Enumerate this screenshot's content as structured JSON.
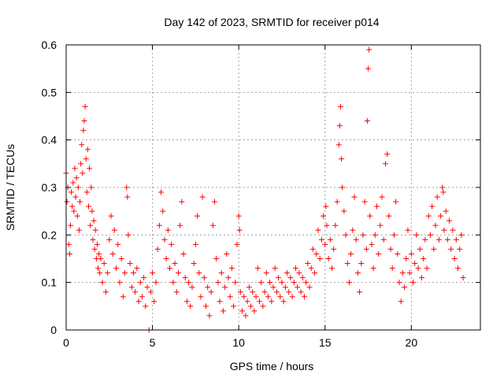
{
  "chart_data": {
    "type": "scatter",
    "title": "Day 142 of 2023, SRMTID for receiver p014",
    "xlabel": "GPS time / hours",
    "ylabel": "SRMTID / TECUs",
    "xlim": [
      0,
      24
    ],
    "ylim": [
      0,
      0.6
    ],
    "xticks": [
      0,
      5,
      10,
      15,
      20
    ],
    "yticks": [
      0,
      0.1,
      0.2,
      0.3,
      0.4,
      0.5,
      0.6
    ],
    "xtick_labels": [
      "0",
      "5",
      "10",
      "15",
      "20"
    ],
    "ytick_labels": [
      "0",
      "0.1",
      "0.2",
      "0.3",
      "0.4",
      "0.5",
      "0.6"
    ],
    "grid": true,
    "marker": "+",
    "color": "#ff0000",
    "series": [
      {
        "name": "SRMTID",
        "points": [
          [
            0.0,
            0.33
          ],
          [
            0.05,
            0.27
          ],
          [
            0.1,
            0.3
          ],
          [
            0.15,
            0.18
          ],
          [
            0.2,
            0.16
          ],
          [
            0.25,
            0.22
          ],
          [
            0.3,
            0.29
          ],
          [
            0.35,
            0.26
          ],
          [
            0.4,
            0.31
          ],
          [
            0.45,
            0.25
          ],
          [
            0.5,
            0.34
          ],
          [
            0.55,
            0.28
          ],
          [
            0.6,
            0.32
          ],
          [
            0.65,
            0.24
          ],
          [
            0.7,
            0.3
          ],
          [
            0.75,
            0.21
          ],
          [
            0.8,
            0.27
          ],
          [
            0.85,
            0.35
          ],
          [
            0.9,
            0.39
          ],
          [
            0.95,
            0.33
          ],
          [
            1.0,
            0.42
          ],
          [
            1.05,
            0.44
          ],
          [
            1.1,
            0.47
          ],
          [
            1.15,
            0.36
          ],
          [
            1.2,
            0.29
          ],
          [
            1.25,
            0.38
          ],
          [
            1.3,
            0.26
          ],
          [
            1.35,
            0.34
          ],
          [
            1.4,
            0.22
          ],
          [
            1.45,
            0.3
          ],
          [
            1.5,
            0.25
          ],
          [
            1.55,
            0.19
          ],
          [
            1.6,
            0.23
          ],
          [
            1.65,
            0.17
          ],
          [
            1.7,
            0.21
          ],
          [
            1.75,
            0.15
          ],
          [
            1.8,
            0.18
          ],
          [
            1.85,
            0.13
          ],
          [
            1.9,
            0.16
          ],
          [
            1.95,
            0.12
          ],
          [
            2.0,
            0.15
          ],
          [
            2.1,
            0.1
          ],
          [
            2.2,
            0.14
          ],
          [
            2.3,
            0.08
          ],
          [
            2.4,
            0.12
          ],
          [
            2.5,
            0.19
          ],
          [
            2.6,
            0.24
          ],
          [
            2.7,
            0.16
          ],
          [
            2.8,
            0.21
          ],
          [
            2.9,
            0.13
          ],
          [
            3.0,
            0.18
          ],
          [
            3.1,
            0.1
          ],
          [
            3.2,
            0.15
          ],
          [
            3.3,
            0.07
          ],
          [
            3.4,
            0.12
          ],
          [
            3.5,
            0.3
          ],
          [
            3.55,
            0.28
          ],
          [
            3.6,
            0.2
          ],
          [
            3.7,
            0.14
          ],
          [
            3.8,
            0.09
          ],
          [
            3.9,
            0.12
          ],
          [
            4.0,
            0.08
          ],
          [
            4.1,
            0.13
          ],
          [
            4.2,
            0.06
          ],
          [
            4.3,
            0.1
          ],
          [
            4.4,
            0.07
          ],
          [
            4.5,
            0.11
          ],
          [
            4.6,
            0.05
          ],
          [
            4.7,
            0.09
          ],
          [
            4.8,
            0.0
          ],
          [
            4.9,
            0.08
          ],
          [
            5.0,
            0.12
          ],
          [
            5.1,
            0.06
          ],
          [
            5.2,
            0.1
          ],
          [
            5.3,
            0.17
          ],
          [
            5.4,
            0.22
          ],
          [
            5.5,
            0.29
          ],
          [
            5.6,
            0.25
          ],
          [
            5.7,
            0.19
          ],
          [
            5.8,
            0.15
          ],
          [
            5.9,
            0.21
          ],
          [
            6.0,
            0.13
          ],
          [
            6.1,
            0.18
          ],
          [
            6.2,
            0.1
          ],
          [
            6.3,
            0.14
          ],
          [
            6.4,
            0.08
          ],
          [
            6.5,
            0.12
          ],
          [
            6.6,
            0.22
          ],
          [
            6.7,
            0.27
          ],
          [
            6.8,
            0.16
          ],
          [
            6.9,
            0.11
          ],
          [
            7.0,
            0.06
          ],
          [
            7.1,
            0.1
          ],
          [
            7.2,
            0.05
          ],
          [
            7.3,
            0.09
          ],
          [
            7.4,
            0.14
          ],
          [
            7.5,
            0.18
          ],
          [
            7.6,
            0.24
          ],
          [
            7.7,
            0.12
          ],
          [
            7.8,
            0.07
          ],
          [
            7.9,
            0.28
          ],
          [
            8.0,
            0.11
          ],
          [
            8.1,
            0.05
          ],
          [
            8.2,
            0.09
          ],
          [
            8.3,
            0.03
          ],
          [
            8.4,
            0.08
          ],
          [
            8.5,
            0.22
          ],
          [
            8.6,
            0.27
          ],
          [
            8.7,
            0.15
          ],
          [
            8.8,
            0.1
          ],
          [
            8.9,
            0.06
          ],
          [
            9.0,
            0.12
          ],
          [
            9.1,
            0.04
          ],
          [
            9.2,
            0.09
          ],
          [
            9.3,
            0.16
          ],
          [
            9.4,
            0.11
          ],
          [
            9.5,
            0.07
          ],
          [
            9.6,
            0.13
          ],
          [
            9.7,
            0.05
          ],
          [
            9.8,
            0.1
          ],
          [
            9.9,
            0.18
          ],
          [
            10.0,
            0.24
          ],
          [
            10.05,
            0.21
          ],
          [
            10.1,
            0.08
          ],
          [
            10.2,
            0.04
          ],
          [
            10.3,
            0.07
          ],
          [
            10.4,
            0.03
          ],
          [
            10.5,
            0.06
          ],
          [
            10.6,
            0.09
          ],
          [
            10.7,
            0.05
          ],
          [
            10.8,
            0.08
          ],
          [
            10.9,
            0.04
          ],
          [
            11.0,
            0.07
          ],
          [
            11.1,
            0.13
          ],
          [
            11.2,
            0.06
          ],
          [
            11.3,
            0.1
          ],
          [
            11.4,
            0.05
          ],
          [
            11.5,
            0.08
          ],
          [
            11.6,
            0.12
          ],
          [
            11.7,
            0.07
          ],
          [
            11.8,
            0.1
          ],
          [
            11.9,
            0.06
          ],
          [
            12.0,
            0.09
          ],
          [
            12.1,
            0.13
          ],
          [
            12.2,
            0.08
          ],
          [
            12.3,
            0.11
          ],
          [
            12.4,
            0.07
          ],
          [
            12.5,
            0.1
          ],
          [
            12.6,
            0.06
          ],
          [
            12.7,
            0.09
          ],
          [
            12.8,
            0.12
          ],
          [
            12.9,
            0.08
          ],
          [
            13.0,
            0.11
          ],
          [
            13.1,
            0.07
          ],
          [
            13.2,
            0.1
          ],
          [
            13.3,
            0.13
          ],
          [
            13.4,
            0.09
          ],
          [
            13.5,
            0.12
          ],
          [
            13.6,
            0.08
          ],
          [
            13.7,
            0.11
          ],
          [
            13.8,
            0.07
          ],
          [
            13.9,
            0.1
          ],
          [
            14.0,
            0.14
          ],
          [
            14.1,
            0.09
          ],
          [
            14.2,
            0.13
          ],
          [
            14.3,
            0.17
          ],
          [
            14.4,
            0.12
          ],
          [
            14.5,
            0.16
          ],
          [
            14.6,
            0.21
          ],
          [
            14.7,
            0.15
          ],
          [
            14.8,
            0.19
          ],
          [
            14.9,
            0.24
          ],
          [
            15.0,
            0.18
          ],
          [
            15.05,
            0.26
          ],
          [
            15.1,
            0.22
          ],
          [
            15.2,
            0.15
          ],
          [
            15.3,
            0.19
          ],
          [
            15.4,
            0.13
          ],
          [
            15.5,
            0.17
          ],
          [
            15.6,
            0.22
          ],
          [
            15.7,
            0.27
          ],
          [
            15.8,
            0.39
          ],
          [
            15.85,
            0.43
          ],
          [
            15.9,
            0.47
          ],
          [
            15.95,
            0.36
          ],
          [
            16.0,
            0.3
          ],
          [
            16.1,
            0.25
          ],
          [
            16.2,
            0.2
          ],
          [
            16.3,
            0.14
          ],
          [
            16.4,
            0.1
          ],
          [
            16.5,
            0.16
          ],
          [
            16.6,
            0.21
          ],
          [
            16.7,
            0.28
          ],
          [
            16.8,
            0.19
          ],
          [
            16.9,
            0.12
          ],
          [
            17.0,
            0.08
          ],
          [
            17.1,
            0.14
          ],
          [
            17.2,
            0.2
          ],
          [
            17.3,
            0.27
          ],
          [
            17.4,
            0.17
          ],
          [
            17.45,
            0.44
          ],
          [
            17.5,
            0.55
          ],
          [
            17.55,
            0.59
          ],
          [
            17.6,
            0.24
          ],
          [
            17.7,
            0.18
          ],
          [
            17.8,
            0.13
          ],
          [
            17.9,
            0.2
          ],
          [
            18.0,
            0.26
          ],
          [
            18.1,
            0.16
          ],
          [
            18.2,
            0.22
          ],
          [
            18.3,
            0.28
          ],
          [
            18.4,
            0.19
          ],
          [
            18.5,
            0.35
          ],
          [
            18.6,
            0.37
          ],
          [
            18.7,
            0.24
          ],
          [
            18.8,
            0.17
          ],
          [
            18.9,
            0.13
          ],
          [
            19.0,
            0.2
          ],
          [
            19.1,
            0.27
          ],
          [
            19.2,
            0.16
          ],
          [
            19.3,
            0.1
          ],
          [
            19.4,
            0.06
          ],
          [
            19.5,
            0.12
          ],
          [
            19.6,
            0.09
          ],
          [
            19.7,
            0.15
          ],
          [
            19.8,
            0.21
          ],
          [
            19.9,
            0.12
          ],
          [
            20.0,
            0.16
          ],
          [
            20.1,
            0.1
          ],
          [
            20.2,
            0.14
          ],
          [
            20.3,
            0.2
          ],
          [
            20.4,
            0.13
          ],
          [
            20.5,
            0.17
          ],
          [
            20.6,
            0.11
          ],
          [
            20.7,
            0.15
          ],
          [
            20.8,
            0.19
          ],
          [
            20.9,
            0.13
          ],
          [
            21.0,
            0.24
          ],
          [
            21.1,
            0.2
          ],
          [
            21.2,
            0.26
          ],
          [
            21.3,
            0.17
          ],
          [
            21.4,
            0.22
          ],
          [
            21.5,
            0.28
          ],
          [
            21.6,
            0.19
          ],
          [
            21.7,
            0.24
          ],
          [
            21.8,
            0.3
          ],
          [
            21.85,
            0.29
          ],
          [
            21.9,
            0.21
          ],
          [
            22.0,
            0.25
          ],
          [
            22.1,
            0.19
          ],
          [
            22.2,
            0.23
          ],
          [
            22.3,
            0.17
          ],
          [
            22.4,
            0.21
          ],
          [
            22.5,
            0.15
          ],
          [
            22.6,
            0.19
          ],
          [
            22.7,
            0.13
          ],
          [
            22.8,
            0.17
          ],
          [
            22.9,
            0.2
          ],
          [
            23.0,
            0.11
          ]
        ]
      }
    ]
  }
}
